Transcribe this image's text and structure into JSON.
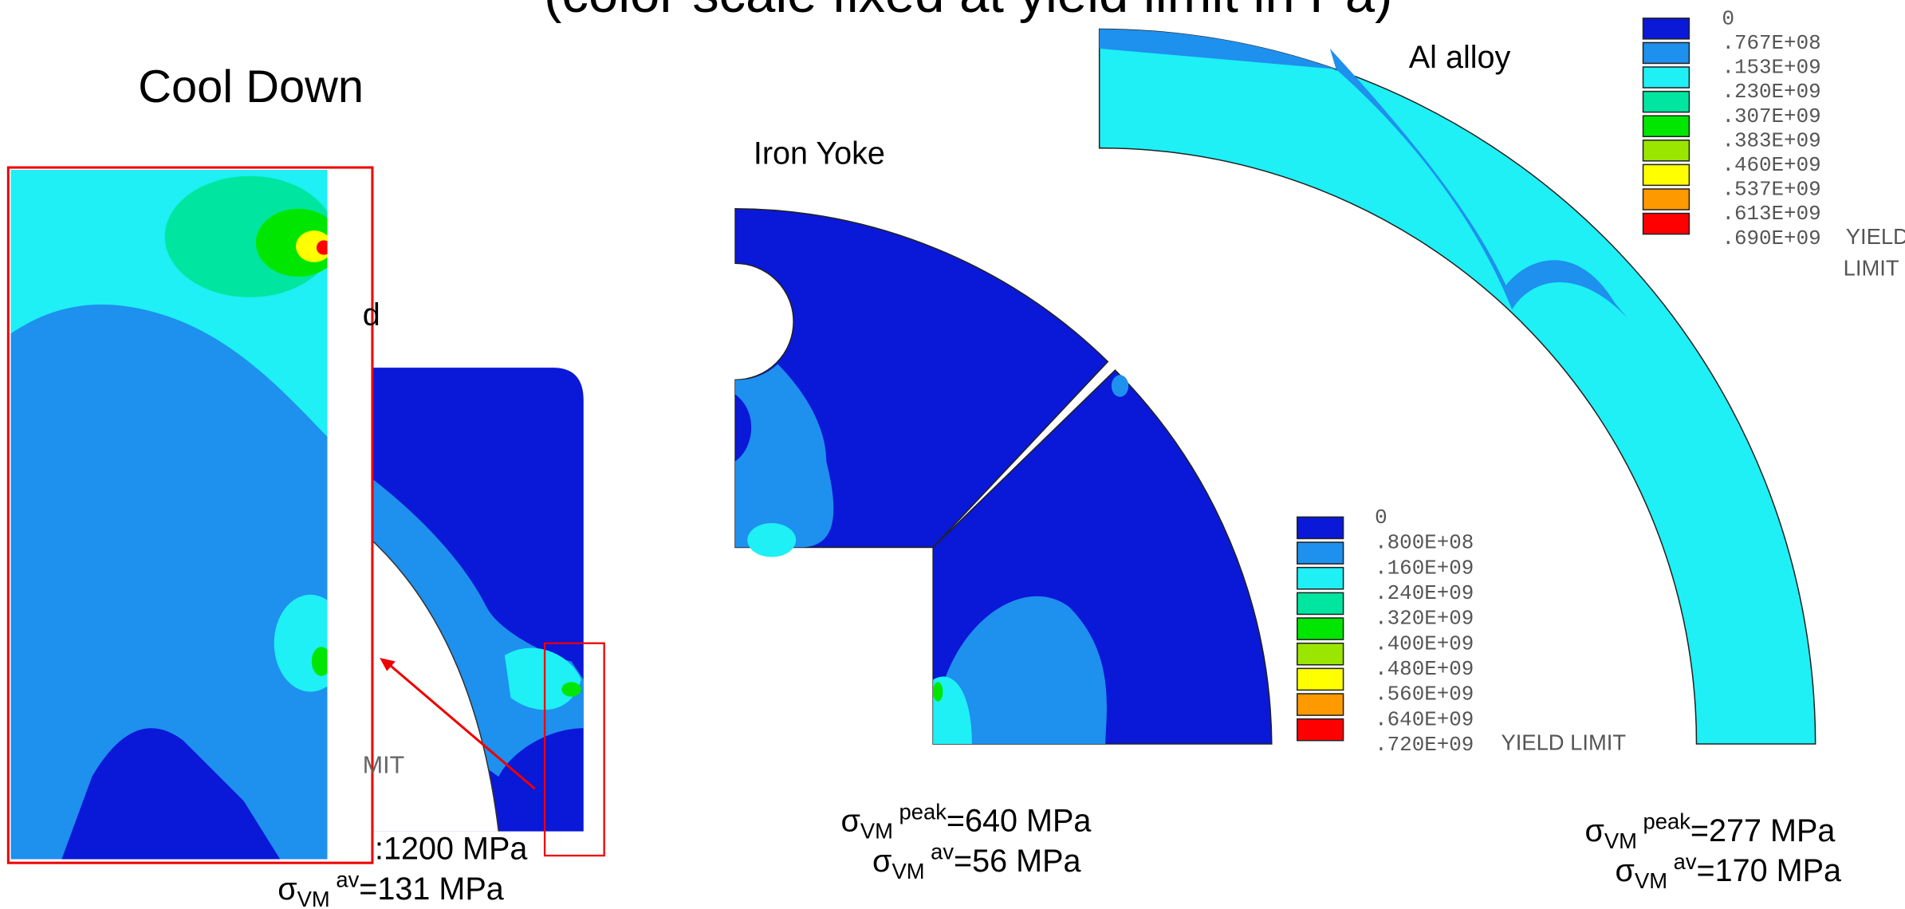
{
  "title": "(color scale fixed at yield limit in Pa)",
  "cool_down": {
    "title": "Cool Down",
    "fragments": [
      "d",
      "MIT"
    ],
    "peak_fragment": ":1200 MPa",
    "average": {
      "symbol": "σ",
      "subscript": "VM",
      "superscript": "av",
      "value": "=131 MPa"
    }
  },
  "iron_yoke": {
    "title": "Iron Yoke",
    "peak": {
      "symbol": "σ",
      "subscript": "VM",
      "superscript": "peak",
      "value": "=640 MPa"
    },
    "average": {
      "symbol": "σ",
      "subscript": "VM",
      "superscript": "av",
      "value": "=56 MPa"
    }
  },
  "al_alloy": {
    "title": "Al alloy",
    "peak": {
      "symbol": "σ",
      "subscript": "VM",
      "superscript": "peak",
      "value": "=277 MPa"
    },
    "average": {
      "symbol": "σ",
      "subscript": "VM",
      "superscript": "av",
      "value": "=170 MPa"
    }
  },
  "legend_iron": {
    "colors": [
      "#0a18d8",
      "#1e90ee",
      "#1ef0f5",
      "#00e6a0",
      "#00e600",
      "#9ae600",
      "#ffff00",
      "#ff9900",
      "#ff0000"
    ],
    "labels": [
      "0",
      ".800E+08",
      ".160E+09",
      ".240E+09",
      ".320E+09",
      ".400E+09",
      ".480E+09",
      ".560E+09",
      ".640E+09",
      ".720E+09"
    ],
    "note": [
      "YIELD LIMIT"
    ]
  },
  "legend_al": {
    "colors": [
      "#0a18d8",
      "#1e90ee",
      "#1ef0f5",
      "#00e6a0",
      "#00e600",
      "#9ae600",
      "#ffff00",
      "#ff9900",
      "#ff0000"
    ],
    "labels": [
      "0",
      ".767E+08",
      ".153E+09",
      ".230E+09",
      ".307E+09",
      ".383E+09",
      ".460E+09",
      ".537E+09",
      ".613E+09",
      ".690E+09"
    ],
    "note": [
      "YIELD",
      "LIMIT"
    ]
  }
}
